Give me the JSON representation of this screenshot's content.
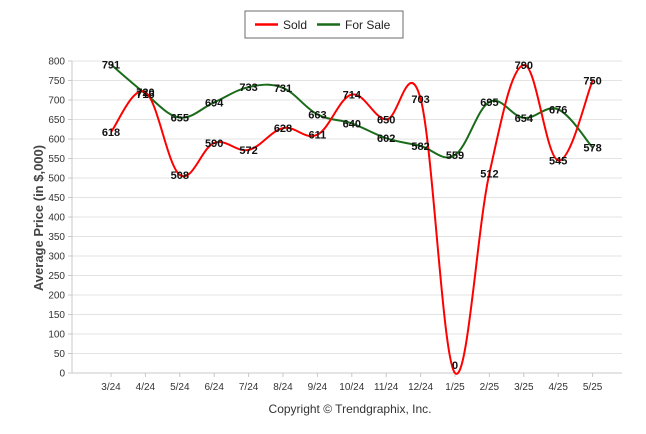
{
  "credit": "Copyright © Trendgraphix, Inc.",
  "chart_data": {
    "type": "line",
    "title": "",
    "xlabel": "",
    "ylabel": "Average Price (in $,000)",
    "ylim": [
      0,
      800
    ],
    "y_ticks": [
      0,
      50,
      100,
      150,
      200,
      250,
      300,
      350,
      400,
      450,
      500,
      550,
      600,
      650,
      700,
      750,
      800
    ],
    "grid": true,
    "legend_position": "top-center",
    "categories": [
      "3/24",
      "4/24",
      "5/24",
      "6/24",
      "7/24",
      "8/24",
      "9/24",
      "10/24",
      "11/24",
      "12/24",
      "1/25",
      "2/25",
      "3/25",
      "4/25",
      "5/25"
    ],
    "series": [
      {
        "name": "Sold",
        "color": "#ff0000",
        "values": [
          618,
          720,
          508,
          590,
          572,
          628,
          611,
          714,
          650,
          703,
          0,
          512,
          790,
          545,
          750
        ]
      },
      {
        "name": "For Sale",
        "color": "#1a6b1a",
        "values": [
          791,
          716,
          655,
          694,
          733,
          731,
          663,
          640,
          602,
          582,
          559,
          695,
          654,
          676,
          578
        ]
      }
    ]
  }
}
